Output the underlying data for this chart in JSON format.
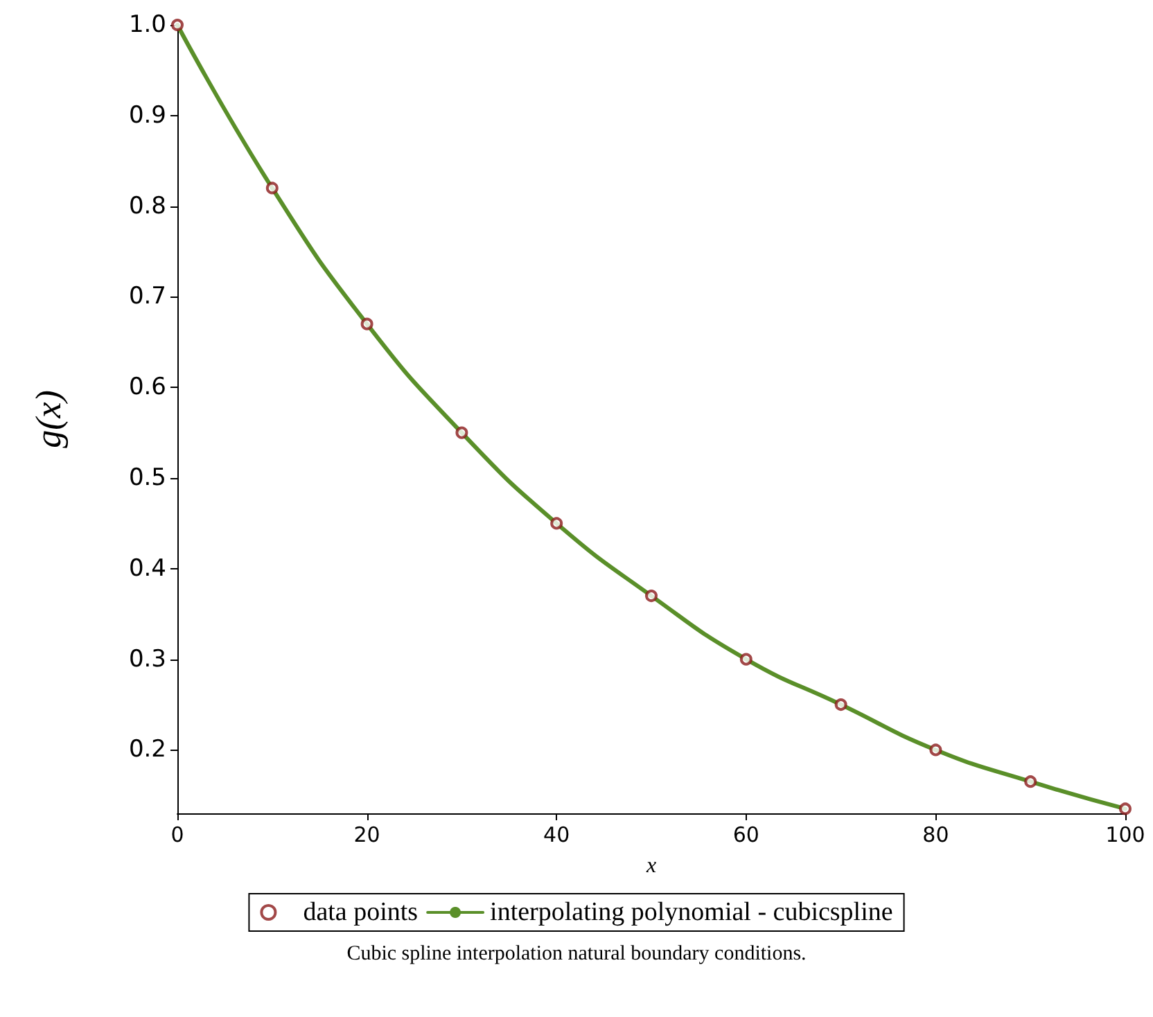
{
  "chart_data": {
    "type": "scatter",
    "x": [
      0,
      10,
      20,
      30,
      40,
      50,
      60,
      70,
      80,
      90,
      100
    ],
    "series": [
      {
        "name": "data points",
        "marker": "circle",
        "color": "#8b1a1a",
        "values": [
          1.0,
          0.82,
          0.67,
          0.55,
          0.45,
          0.37,
          0.3,
          0.25,
          0.2,
          0.165,
          0.135
        ]
      },
      {
        "name": "interpolating polynomial - cubicspline",
        "type": "line",
        "marker": "none",
        "line_style": "solid",
        "color": "#5a8f29",
        "values": [
          1.0,
          0.82,
          0.67,
          0.55,
          0.45,
          0.37,
          0.3,
          0.25,
          0.2,
          0.165,
          0.135
        ]
      }
    ],
    "xlabel": "x",
    "ylabel": "g(x)",
    "xlim": [
      0,
      100
    ],
    "xticks": [
      0,
      20,
      40,
      60,
      80,
      100
    ],
    "ylim": [
      0.13,
      1.0
    ],
    "yticks": [
      0.2,
      0.3,
      0.4,
      0.5,
      0.6,
      0.7,
      0.8,
      0.9,
      {
        "value": 1.0,
        "label": "1.0"
      }
    ],
    "grid": false,
    "legend": "bottom",
    "annotations": [
      "Cubic spline interpolation natural boundary conditions."
    ]
  }
}
